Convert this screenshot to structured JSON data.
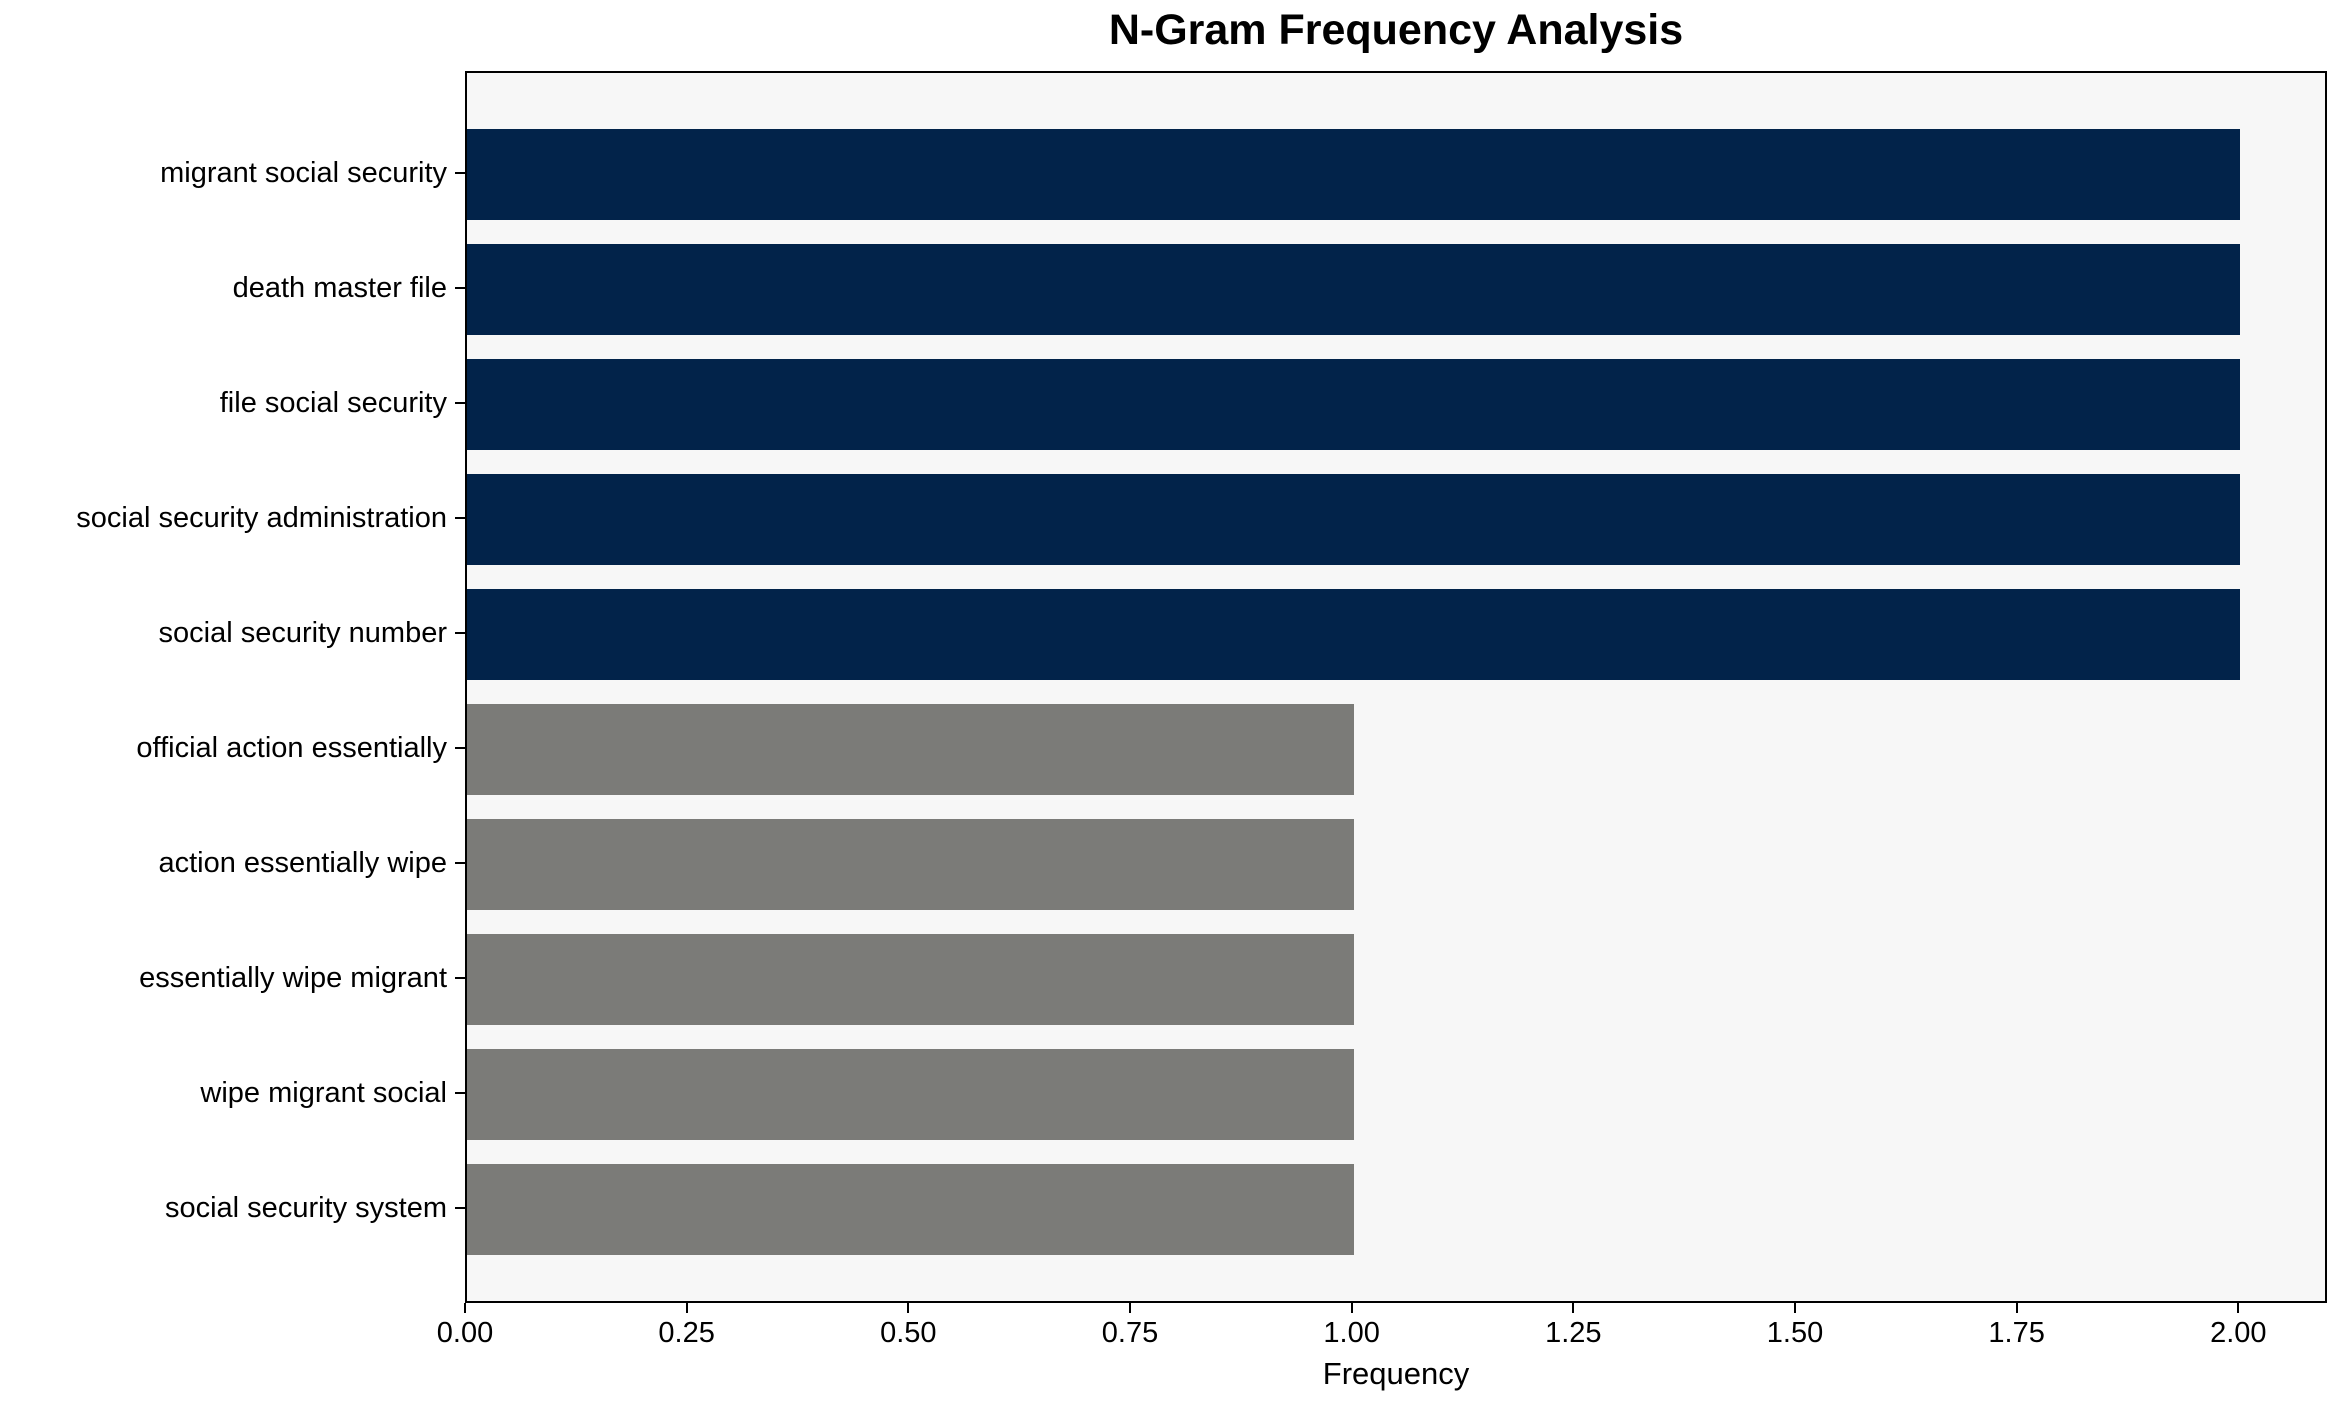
{
  "chart_data": {
    "type": "bar",
    "orientation": "horizontal",
    "title": "N-Gram Frequency Analysis",
    "xlabel": "Frequency",
    "ylabel": "",
    "categories": [
      "migrant social security",
      "death master file",
      "file social security",
      "social security administration",
      "social security number",
      "official action essentially",
      "action essentially wipe",
      "essentially wipe migrant",
      "wipe migrant social",
      "social security system"
    ],
    "values": [
      2,
      2,
      2,
      2,
      2,
      1,
      1,
      1,
      1,
      1
    ],
    "bar_colors": [
      "#02234a",
      "#02234a",
      "#02234a",
      "#02234a",
      "#02234a",
      "#7b7b78",
      "#7b7b78",
      "#7b7b78",
      "#7b7b78",
      "#7b7b78"
    ],
    "xlim": [
      0,
      2.1
    ],
    "xtick_values": [
      0,
      0.25,
      0.5,
      0.75,
      1.0,
      1.25,
      1.5,
      1.75,
      2.0
    ],
    "xtick_labels": [
      "0.00",
      "0.25",
      "0.50",
      "0.75",
      "1.00",
      "1.25",
      "1.50",
      "1.75",
      "2.00"
    ],
    "grid": false,
    "legend": null,
    "colors": {
      "bar_high": "#02234a",
      "bar_low": "#7b7b78",
      "plot_background": "#f7f7f7",
      "figure_background": "#ffffff",
      "axis": "#000000",
      "text": "#000000"
    }
  }
}
